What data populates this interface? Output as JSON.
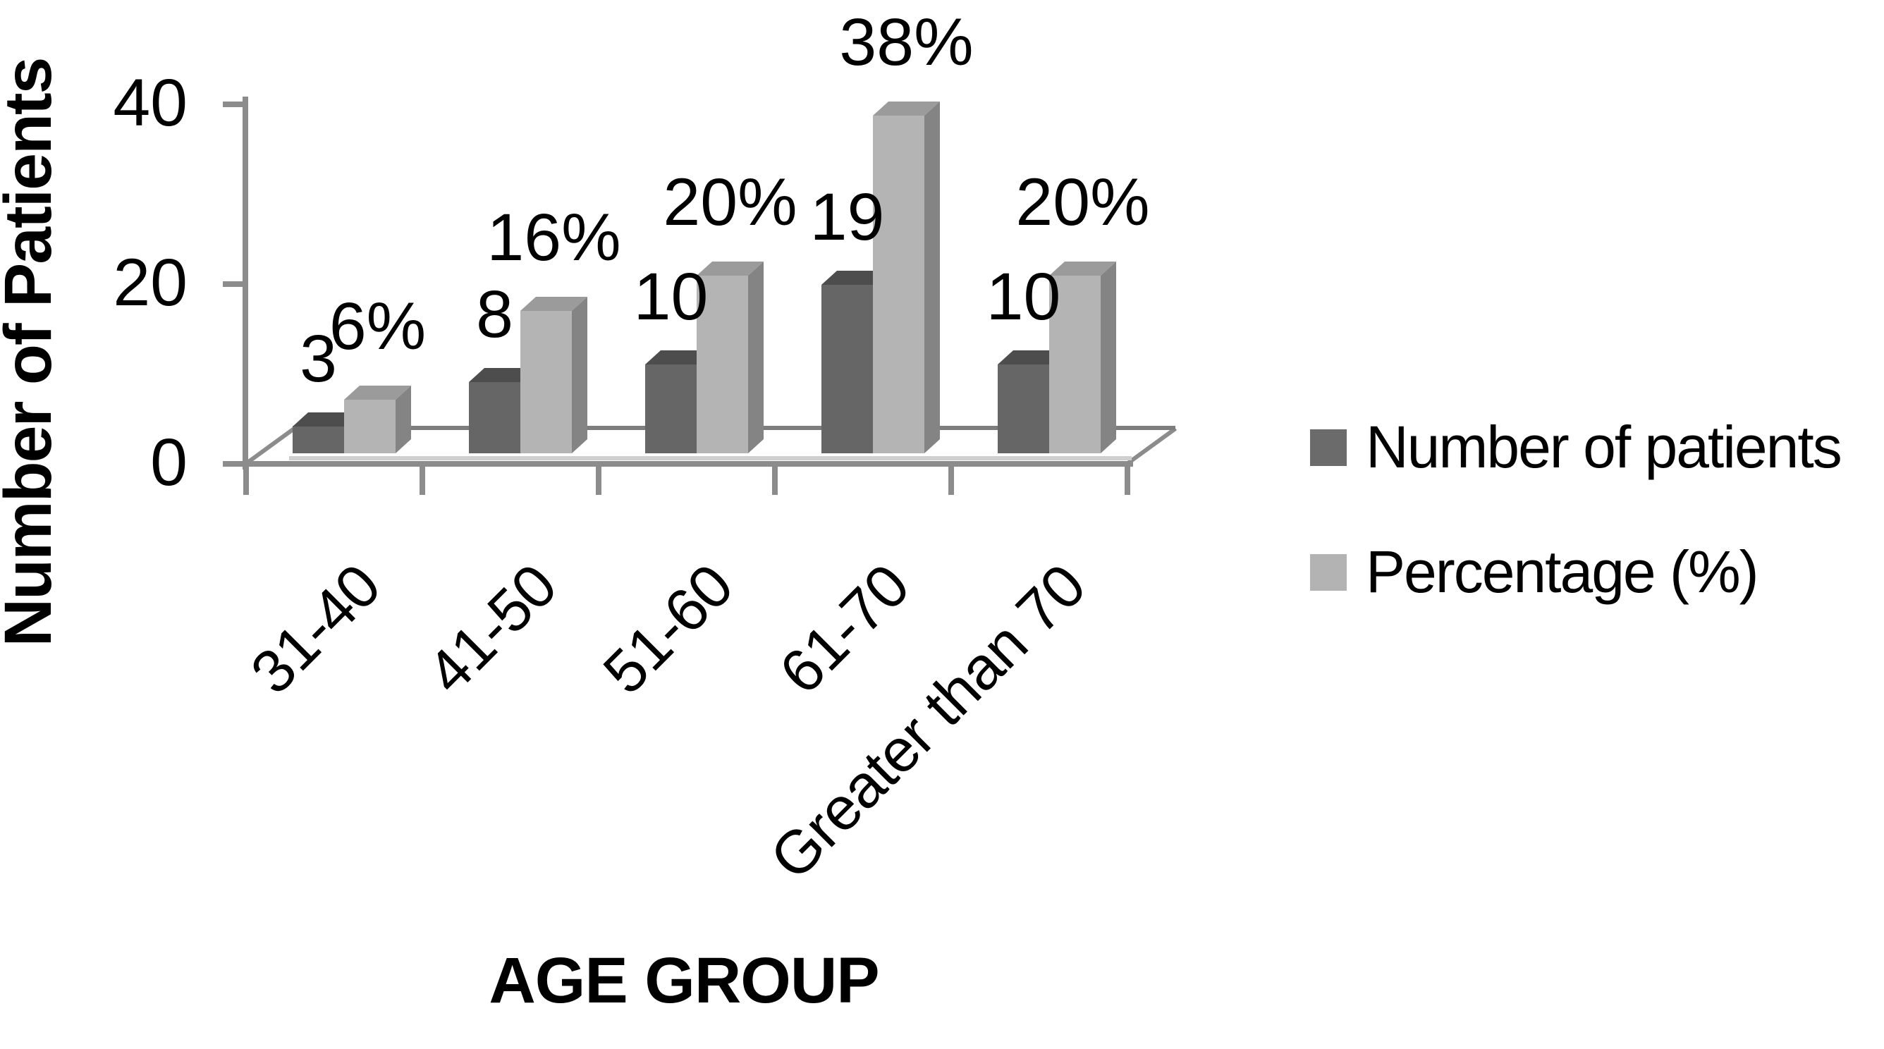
{
  "chart_data": {
    "type": "bar",
    "projection": "3d",
    "title": "",
    "xlabel": "AGE GROUP",
    "ylabel": "Number of Patients",
    "categories": [
      "31-40",
      "41-50",
      "51-60",
      "61-70",
      "Greater than 70"
    ],
    "series": [
      {
        "name": "Number of patients",
        "values": [
          3,
          8,
          10,
          19,
          10
        ],
        "data_labels": [
          "3",
          "8",
          "10",
          "19",
          "10"
        ],
        "front_color": "#666666",
        "top_color": "#4d4d4d",
        "side_color": "#404040",
        "swatch_color": "#6b6b6b"
      },
      {
        "name": "Percentage (%)",
        "values": [
          6,
          16,
          20,
          38,
          20
        ],
        "data_labels": [
          "6%",
          "16%",
          "20%",
          "38%",
          "20%"
        ],
        "front_color": "#b4b4b4",
        "top_color": "#9b9b9b",
        "side_color": "#848484",
        "swatch_color": "#b3b3b3"
      }
    ],
    "y_ticks": [
      "0",
      "20",
      "40"
    ],
    "y_tick_values": [
      0,
      20,
      40
    ],
    "ylim": [
      0,
      40
    ],
    "grid": false,
    "legend_position": "right",
    "axis_color": "#8c8c8c",
    "floor_back_color": "#7d7d7d",
    "floor_front_highlight": "#cfcfcf",
    "text_color": "#000000"
  },
  "legend": {
    "items": [
      {
        "label": "Number of patients"
      },
      {
        "label": "Percentage (%)"
      }
    ]
  }
}
